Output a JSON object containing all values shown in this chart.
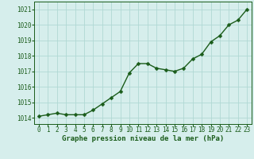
{
  "x": [
    0,
    1,
    2,
    3,
    4,
    5,
    6,
    7,
    8,
    9,
    10,
    11,
    12,
    13,
    14,
    15,
    16,
    17,
    18,
    19,
    20,
    21,
    22,
    23
  ],
  "y": [
    1014.1,
    1014.2,
    1014.3,
    1014.2,
    1014.2,
    1014.2,
    1014.5,
    1014.9,
    1015.3,
    1015.7,
    1016.9,
    1017.5,
    1017.5,
    1017.2,
    1017.1,
    1017.0,
    1017.2,
    1017.8,
    1018.1,
    1018.9,
    1019.3,
    1020.0,
    1020.3,
    1021.0
  ],
  "line_color": "#1a5c1a",
  "marker": "D",
  "markersize": 2.5,
  "linewidth": 1.0,
  "background_color": "#d6eeec",
  "grid_color": "#b0d8d4",
  "xlabel": "Graphe pression niveau de la mer (hPa)",
  "xlabel_fontsize": 6.5,
  "xlabel_color": "#1a5c1a",
  "tick_color": "#1a5c1a",
  "tick_fontsize": 5.5,
  "ytick_labels": [
    "1014",
    "1015",
    "1016",
    "1017",
    "1018",
    "1019",
    "1020",
    "1021"
  ],
  "ylim": [
    1013.6,
    1021.5
  ],
  "xlim": [
    -0.5,
    23.5
  ],
  "yticks": [
    1014,
    1015,
    1016,
    1017,
    1018,
    1019,
    1020,
    1021
  ]
}
